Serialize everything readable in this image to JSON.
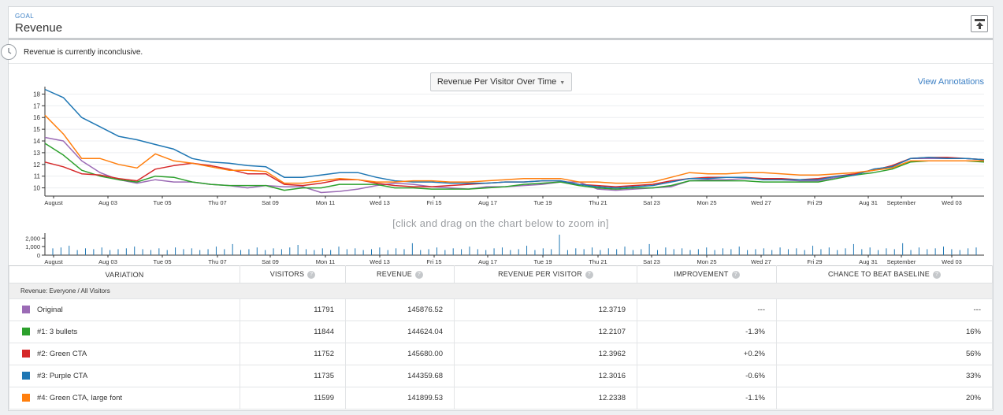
{
  "header": {
    "goal_label": "GOAL",
    "title": "Revenue",
    "collapse_icon": "collapse-icon"
  },
  "status": {
    "icon": "clock-icon",
    "text": "Revenue is currently inconclusive."
  },
  "chart_controls": {
    "selected_chart": "Revenue Per Visitor Over Time",
    "view_annotations": "View Annotations",
    "zoom_hint": "[click and drag on the chart below to zoom in]"
  },
  "chart_data": [
    {
      "type": "line",
      "title": "Revenue Per Visitor Over Time",
      "xlabel": "",
      "ylabel": "",
      "x_labels": [
        "August",
        "Aug 03",
        "Tue 05",
        "Thu 07",
        "Sat 09",
        "Mon 11",
        "Wed 13",
        "Fri 15",
        "Aug 17",
        "Tue 19",
        "Thu 21",
        "Sat 23",
        "Mon 25",
        "Wed 27",
        "Fri 29",
        "Aug 31",
        "September",
        "Wed 03"
      ],
      "y_ticks": [
        10,
        11,
        12,
        13,
        14,
        15,
        16,
        17,
        18
      ],
      "ylim": [
        9.3,
        18.5
      ],
      "grid": true,
      "series": [
        {
          "name": "Original",
          "color": "#9b6bb5",
          "values": [
            14.3,
            14.0,
            12.3,
            11.3,
            10.7,
            10.4,
            10.7,
            10.5,
            10.5,
            10.3,
            10.2,
            10.0,
            10.2,
            10.1,
            10.1,
            9.6,
            9.7,
            9.9,
            10.2,
            10.4,
            10.3,
            10.1,
            10.0,
            9.9,
            10.1,
            10.1,
            10.2,
            10.3,
            10.5,
            10.5,
            9.9,
            9.8,
            9.9,
            10.0,
            10.1,
            10.6,
            10.7,
            10.7,
            10.8,
            10.8,
            10.7,
            10.6,
            10.6,
            10.9,
            11.1,
            11.6,
            11.8,
            12.5,
            12.5,
            12.5,
            12.5,
            12.4
          ]
        },
        {
          "name": "#1: 3 bullets",
          "color": "#2ca02c",
          "values": [
            13.8,
            12.8,
            11.5,
            11.0,
            10.7,
            10.5,
            11.0,
            10.9,
            10.5,
            10.3,
            10.2,
            10.2,
            10.2,
            9.8,
            10.0,
            10.0,
            10.3,
            10.3,
            10.3,
            10.0,
            10.0,
            9.9,
            9.9,
            9.9,
            10.0,
            10.1,
            10.3,
            10.4,
            10.5,
            10.2,
            10.0,
            9.9,
            10.0,
            10.0,
            10.2,
            10.6,
            10.6,
            10.6,
            10.6,
            10.5,
            10.5,
            10.5,
            10.5,
            10.8,
            11.1,
            11.3,
            11.6,
            12.2,
            12.3,
            12.3,
            12.3,
            12.2
          ]
        },
        {
          "name": "#2: Green CTA",
          "color": "#d62728",
          "values": [
            12.2,
            11.8,
            11.2,
            11.1,
            10.8,
            10.6,
            11.6,
            11.9,
            12.1,
            11.9,
            11.6,
            11.2,
            11.2,
            10.3,
            10.2,
            10.4,
            10.7,
            10.7,
            10.4,
            10.2,
            10.1,
            10.1,
            10.2,
            10.3,
            10.4,
            10.5,
            10.5,
            10.6,
            10.6,
            10.3,
            10.2,
            10.1,
            10.2,
            10.3,
            10.6,
            10.8,
            10.9,
            10.9,
            10.9,
            10.8,
            10.8,
            10.7,
            10.8,
            11.0,
            11.2,
            11.5,
            11.9,
            12.5,
            12.6,
            12.6,
            12.5,
            12.4
          ]
        },
        {
          "name": "#3: Purple CTA",
          "color": "#1f77b4",
          "values": [
            18.4,
            17.7,
            16.0,
            15.2,
            14.4,
            14.1,
            13.7,
            13.3,
            12.5,
            12.2,
            12.1,
            11.9,
            11.8,
            10.9,
            10.9,
            11.1,
            11.3,
            11.3,
            10.9,
            10.6,
            10.5,
            10.5,
            10.4,
            10.4,
            10.4,
            10.5,
            10.5,
            10.6,
            10.6,
            10.3,
            10.1,
            10.0,
            10.1,
            10.2,
            10.5,
            10.8,
            10.8,
            10.9,
            10.9,
            10.7,
            10.7,
            10.7,
            10.7,
            11.0,
            11.1,
            11.6,
            11.8,
            12.5,
            12.6,
            12.5,
            12.5,
            12.4
          ]
        },
        {
          "name": "#4: Green CTA, large font",
          "color": "#ff7f0e",
          "values": [
            16.2,
            14.6,
            12.5,
            12.5,
            12.0,
            11.7,
            12.9,
            12.3,
            12.1,
            11.8,
            11.5,
            11.5,
            11.4,
            10.4,
            10.4,
            10.6,
            10.8,
            10.7,
            10.5,
            10.5,
            10.6,
            10.6,
            10.5,
            10.5,
            10.6,
            10.7,
            10.8,
            10.8,
            10.8,
            10.5,
            10.5,
            10.4,
            10.4,
            10.5,
            10.9,
            11.3,
            11.2,
            11.2,
            11.3,
            11.3,
            11.2,
            11.1,
            11.1,
            11.2,
            11.3,
            11.5,
            11.7,
            12.3,
            12.3,
            12.3,
            12.3,
            12.3
          ]
        }
      ]
    },
    {
      "type": "bar",
      "title": "",
      "y_ticks": [
        0,
        1000,
        2000
      ],
      "y_tick_labels": [
        "0",
        "1,000",
        "2,000"
      ],
      "ylim": [
        0,
        2400
      ],
      "x_labels": [
        "August",
        "Aug 03",
        "Tue 05",
        "Thu 07",
        "Sat 09",
        "Mon 11",
        "Wed 13",
        "Fri 15",
        "Aug 17",
        "Tue 19",
        "Thu 21",
        "Sat 23",
        "Mon 25",
        "Wed 27",
        "Fri 29",
        "Aug 31",
        "September",
        "Wed 03"
      ],
      "values": [
        800,
        900,
        1100,
        600,
        800,
        700,
        900,
        600,
        700,
        800,
        1000,
        700,
        600,
        800,
        600,
        900,
        700,
        800,
        600,
        700,
        1000,
        700,
        1300,
        600,
        700,
        900,
        600,
        800,
        700,
        900,
        1200,
        700,
        600,
        800,
        600,
        1000,
        700,
        800,
        600,
        700,
        900,
        600,
        800,
        700,
        1400,
        600,
        700,
        900,
        600,
        800,
        700,
        1000,
        700,
        600,
        800,
        900,
        600,
        700,
        1100,
        600,
        800,
        700,
        2400,
        600,
        800,
        700,
        900,
        600,
        800,
        700,
        1000,
        600,
        700,
        1300,
        600,
        900,
        700,
        800,
        600,
        700,
        900,
        600,
        800,
        700,
        1000,
        600,
        700,
        800,
        600,
        900,
        700,
        800,
        600,
        1100,
        700,
        900,
        600,
        800,
        1300,
        700,
        900,
        600,
        800,
        700,
        1400,
        600,
        900,
        700,
        800,
        1000,
        700,
        600,
        800,
        900
      ]
    }
  ],
  "table": {
    "headers": [
      "VARIATION",
      "VISITORS",
      "REVENUE",
      "REVENUE PER VISITOR",
      "IMPROVEMENT",
      "CHANCE TO BEAT BASELINE"
    ],
    "help_icon": "help-icon",
    "group_label": "Revenue: Everyone / All Visitors",
    "rows": [
      {
        "color": "#9b6bb5",
        "name": "Original",
        "visitors": "11791",
        "revenue": "145876.52",
        "rpv": "12.3719",
        "improvement": "---",
        "chance": "---"
      },
      {
        "color": "#2ca02c",
        "name": "#1: 3 bullets",
        "visitors": "11844",
        "revenue": "144624.04",
        "rpv": "12.2107",
        "improvement": "-1.3%",
        "chance": "16%"
      },
      {
        "color": "#d62728",
        "name": "#2: Green CTA",
        "visitors": "11752",
        "revenue": "145680.00",
        "rpv": "12.3962",
        "improvement": "+0.2%",
        "chance": "56%"
      },
      {
        "color": "#1f77b4",
        "name": "#3: Purple CTA",
        "visitors": "11735",
        "revenue": "144359.68",
        "rpv": "12.3016",
        "improvement": "-0.6%",
        "chance": "33%"
      },
      {
        "color": "#ff7f0e",
        "name": "#4: Green CTA, large font",
        "visitors": "11599",
        "revenue": "141899.53",
        "rpv": "12.2338",
        "improvement": "-1.1%",
        "chance": "20%"
      }
    ]
  }
}
